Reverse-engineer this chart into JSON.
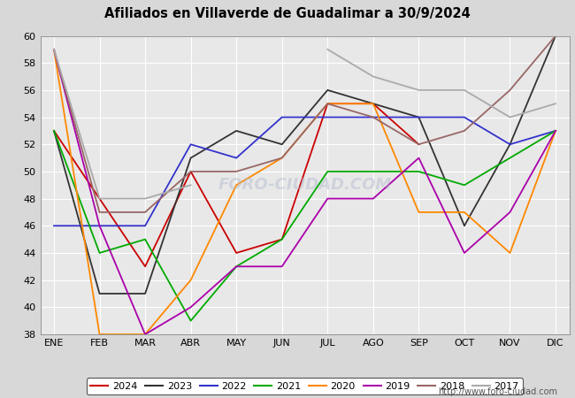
{
  "title": "Afiliados en Villaverde de Guadalimar a 30/9/2024",
  "months": [
    "ENE",
    "FEB",
    "MAR",
    "ABR",
    "MAY",
    "JUN",
    "JUL",
    "AGO",
    "SEP",
    "OCT",
    "NOV",
    "DIC"
  ],
  "ylim": [
    38,
    60
  ],
  "yticks": [
    38,
    40,
    42,
    44,
    46,
    48,
    50,
    52,
    54,
    56,
    58,
    60
  ],
  "series": [
    {
      "year": "2024",
      "color": "#cc0000",
      "data": [
        53,
        48,
        43,
        50,
        44,
        45,
        55,
        55,
        52,
        null,
        null,
        null
      ]
    },
    {
      "year": "2023",
      "color": "#333333",
      "data": [
        53,
        41,
        41,
        51,
        53,
        52,
        56,
        55,
        54,
        46,
        52,
        60
      ]
    },
    {
      "year": "2022",
      "color": "#3333cc",
      "data": [
        46,
        46,
        46,
        52,
        51,
        54,
        54,
        54,
        54,
        54,
        52,
        53
      ]
    },
    {
      "year": "2021",
      "color": "#00aa00",
      "data": [
        53,
        44,
        45,
        39,
        43,
        45,
        50,
        50,
        50,
        49,
        51,
        53
      ]
    },
    {
      "year": "2020",
      "color": "#ff8800",
      "data": [
        59,
        38,
        38,
        42,
        49,
        51,
        55,
        55,
        47,
        47,
        44,
        53
      ]
    },
    {
      "year": "2019",
      "color": "#aa00aa",
      "data": [
        59,
        46,
        38,
        40,
        43,
        43,
        48,
        48,
        51,
        44,
        47,
        53
      ]
    },
    {
      "year": "2018",
      "color": "#996666",
      "data": [
        59,
        47,
        47,
        50,
        50,
        51,
        55,
        54,
        52,
        53,
        56,
        60
      ]
    },
    {
      "year": "2017",
      "color": "#aaaaaa",
      "data": [
        59,
        48,
        48,
        49,
        null,
        null,
        59,
        57,
        56,
        56,
        54,
        55
      ]
    }
  ],
  "bg_color": "#d8d8d8",
  "plot_bg_color": "#e8e8e8",
  "grid_color": "#ffffff",
  "header_color": "#5b9bd5",
  "title_color": "#000000",
  "footer_url": "http://www.foro-ciudad.com",
  "watermark": "FORO-CIUDAD.COM"
}
